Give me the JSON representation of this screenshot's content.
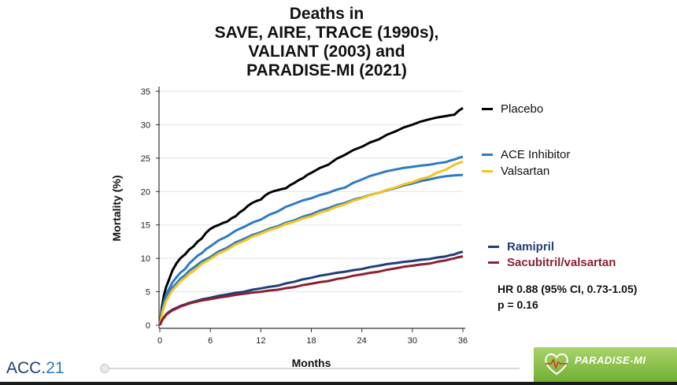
{
  "title": {
    "line1": "Deaths in",
    "line2": "SAVE, AIRE, TRACE (1990s),",
    "line3": "VALIANT (2003) and",
    "line4": "PARADISE-MI (2021)"
  },
  "stats": {
    "hr": "HR 0.88 (95% CI, 0.73-1.05)",
    "p": "p = 0.16"
  },
  "footer": {
    "acc_prefix": "ACC.",
    "acc_num": "21",
    "logo_text": "PARADISE-MI"
  },
  "chart_data": {
    "type": "line",
    "xlabel": "Months",
    "ylabel": "Mortality (%)",
    "xlim": [
      0,
      36
    ],
    "ylim": [
      0,
      35
    ],
    "xticks": [
      0,
      6,
      12,
      18,
      24,
      30,
      36
    ],
    "yticks": [
      0,
      5,
      10,
      15,
      20,
      25,
      30,
      35
    ],
    "grid": "horizontal",
    "series": [
      {
        "name": "Placebo",
        "color": "#000000",
        "legend_bold": false,
        "x": [
          0,
          0.5,
          1,
          2,
          3,
          4,
          5,
          6,
          7,
          8,
          9,
          10,
          11,
          12,
          13,
          14,
          15,
          16,
          17,
          18,
          20,
          22,
          24,
          26,
          28,
          30,
          32,
          34,
          35,
          36
        ],
        "y": [
          0,
          4.5,
          6.5,
          9.3,
          10.6,
          11.8,
          13,
          14.4,
          15,
          15.5,
          16.3,
          17.3,
          18.3,
          18.8,
          19.8,
          20.2,
          20.5,
          21.3,
          22,
          22.8,
          24,
          25.5,
          26.7,
          27.8,
          29,
          30,
          30.8,
          31.3,
          31.5,
          32.5
        ]
      },
      {
        "name": "ACE Inhibitor",
        "color": "#2e7bc4",
        "legend_bold": false,
        "x": [
          0,
          0.5,
          1,
          2,
          3,
          4,
          5,
          6,
          8,
          10,
          12,
          14,
          16,
          18,
          20,
          22,
          24,
          26,
          28,
          30,
          32,
          34,
          35,
          36
        ],
        "y": [
          0,
          3.5,
          5.2,
          7.2,
          8.4,
          9.8,
          10.8,
          11.8,
          13.3,
          14.7,
          15.8,
          17,
          18.2,
          19,
          19.8,
          20.6,
          21.8,
          22.7,
          23.3,
          23.7,
          24,
          24.4,
          24.8,
          25.2
        ]
      },
      {
        "name": "ACE Inhibitor",
        "color": "#2e7bc4",
        "legend_bold": false,
        "hide_legend": true,
        "x": [
          0,
          0.5,
          1,
          2,
          3,
          4,
          6,
          8,
          10,
          12,
          14,
          16,
          18,
          20,
          22,
          24,
          26,
          28,
          30,
          32,
          34,
          36
        ],
        "y": [
          0,
          3,
          4.6,
          6.3,
          7.5,
          8.6,
          10.2,
          11.6,
          12.9,
          13.9,
          14.8,
          15.7,
          16.6,
          17.5,
          18.3,
          19.1,
          19.8,
          20.5,
          21.2,
          21.8,
          22.3,
          22.5
        ]
      },
      {
        "name": "Valsartan",
        "color": "#f6c21d",
        "legend_bold": false,
        "x": [
          0,
          0.5,
          1,
          2,
          3,
          4,
          6,
          8,
          10,
          12,
          14,
          16,
          18,
          20,
          22,
          24,
          26,
          28,
          30,
          32,
          34,
          36
        ],
        "y": [
          0,
          2.7,
          4.2,
          5.9,
          7.1,
          8.1,
          9.9,
          11.3,
          12.6,
          13.7,
          14.6,
          15.5,
          16.3,
          17.2,
          18.1,
          19,
          19.8,
          20.6,
          21.4,
          22.2,
          23.3,
          24.5
        ]
      },
      {
        "name": "Ramipril",
        "color": "#1f3f7a",
        "legend_bold": true,
        "x": [
          0,
          0.5,
          1,
          2,
          3,
          4,
          6,
          8,
          10,
          12,
          14,
          16,
          18,
          20,
          22,
          24,
          26,
          28,
          30,
          32,
          34,
          35,
          36
        ],
        "y": [
          0,
          1.2,
          1.9,
          2.6,
          3.1,
          3.5,
          4.1,
          4.6,
          5,
          5.5,
          5.9,
          6.5,
          7.1,
          7.6,
          8,
          8.4,
          8.9,
          9.3,
          9.6,
          9.9,
          10.3,
          10.6,
          11
        ]
      },
      {
        "name": "Sacubitril/valsartan",
        "color": "#8b2231",
        "legend_bold": true,
        "x": [
          0,
          0.5,
          1,
          2,
          3,
          4,
          6,
          8,
          10,
          12,
          14,
          16,
          18,
          20,
          22,
          24,
          26,
          28,
          30,
          32,
          34,
          35,
          36
        ],
        "y": [
          0,
          1.1,
          1.8,
          2.5,
          3,
          3.4,
          3.9,
          4.3,
          4.7,
          5,
          5.3,
          5.7,
          6.2,
          6.6,
          7.1,
          7.6,
          8,
          8.5,
          8.9,
          9.2,
          9.7,
          10,
          10.3
        ]
      }
    ],
    "legend": [
      {
        "label": "Placebo",
        "color": "#000000",
        "bold": false
      },
      {
        "label": "ACE Inhibitor",
        "color": "#2e7bc4",
        "bold": false
      },
      {
        "label": "Valsartan",
        "color": "#f6c21d",
        "bold": false
      },
      {
        "label": "Ramipril",
        "color": "#1f3f7a",
        "bold": true
      },
      {
        "label": "Sacubitril/valsartan",
        "color": "#8b2231",
        "bold": true
      }
    ]
  }
}
